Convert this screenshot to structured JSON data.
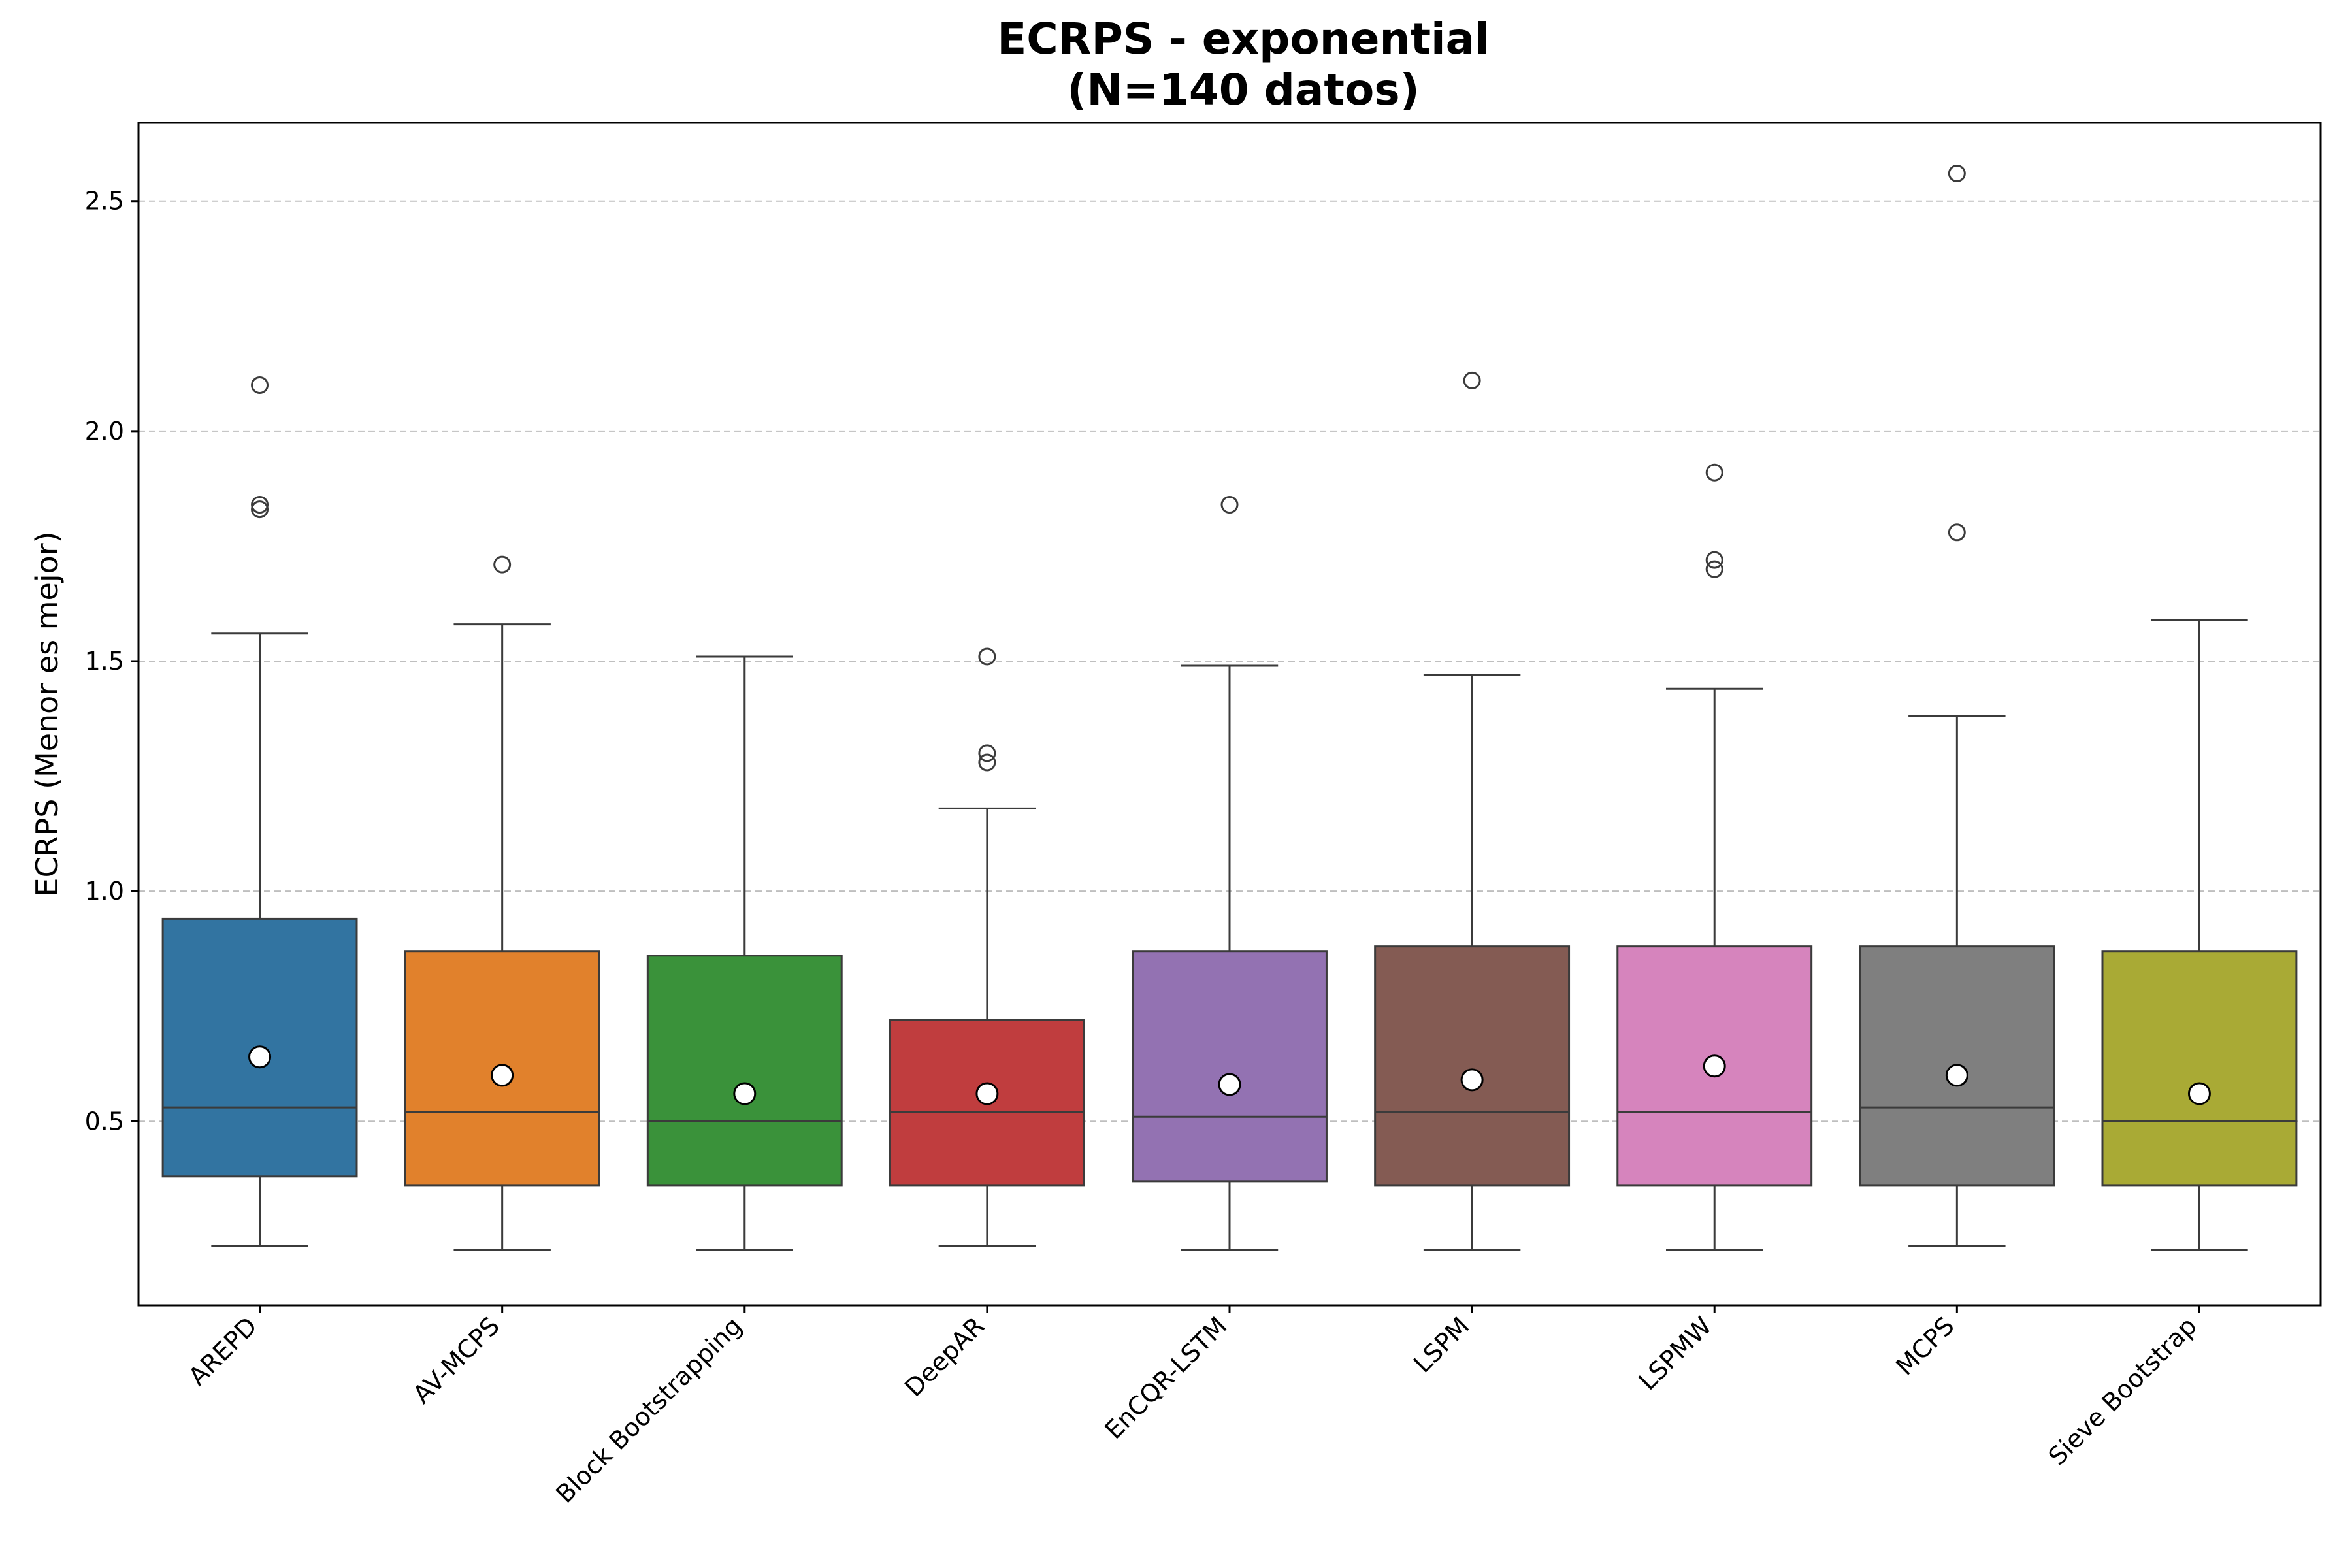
{
  "chart_data": {
    "type": "boxplot",
    "title": [
      "ECRPS - exponential",
      "(N=140 datos)"
    ],
    "xlabel": "",
    "ylabel": "ECRPS (Menor es mejor)",
    "ylim": [
      0.1,
      2.67
    ],
    "yticks": [
      0.5,
      1.0,
      1.5,
      2.0,
      2.5
    ],
    "ytick_labels": [
      "0.5",
      "1.0",
      "1.5",
      "2.0",
      "2.5"
    ],
    "grid": "horizontal dashed",
    "categories": [
      "AREPD",
      "AV-MCPS",
      "Block Bootstrapping",
      "DeepAR",
      "EnCQR-LSTM",
      "LSPM",
      "LSPMW",
      "MCPS",
      "Sieve Bootstrap"
    ],
    "colors": [
      "#3274a1",
      "#e1812c",
      "#3a923a",
      "#c03d3e",
      "#9372b2",
      "#845b53",
      "#d684bd",
      "#7f7f7f",
      "#a9aa35"
    ],
    "boxes": [
      {
        "whisker_low": 0.23,
        "q1": 0.38,
        "median": 0.53,
        "q3": 0.94,
        "whisker_high": 1.56,
        "mean": 0.64,
        "outliers": [
          1.83,
          1.84,
          2.1
        ]
      },
      {
        "whisker_low": 0.22,
        "q1": 0.36,
        "median": 0.52,
        "q3": 0.87,
        "whisker_high": 1.58,
        "mean": 0.6,
        "outliers": [
          1.71
        ]
      },
      {
        "whisker_low": 0.22,
        "q1": 0.36,
        "median": 0.5,
        "q3": 0.86,
        "whisker_high": 1.51,
        "mean": 0.56,
        "outliers": []
      },
      {
        "whisker_low": 0.23,
        "q1": 0.36,
        "median": 0.52,
        "q3": 0.72,
        "whisker_high": 1.18,
        "mean": 0.56,
        "outliers": [
          1.28,
          1.3,
          1.51
        ]
      },
      {
        "whisker_low": 0.22,
        "q1": 0.37,
        "median": 0.51,
        "q3": 0.87,
        "whisker_high": 1.49,
        "mean": 0.58,
        "outliers": [
          1.84
        ]
      },
      {
        "whisker_low": 0.22,
        "q1": 0.36,
        "median": 0.52,
        "q3": 0.88,
        "whisker_high": 1.47,
        "mean": 0.59,
        "outliers": [
          2.11
        ]
      },
      {
        "whisker_low": 0.22,
        "q1": 0.36,
        "median": 0.52,
        "q3": 0.88,
        "whisker_high": 1.44,
        "mean": 0.62,
        "outliers": [
          1.7,
          1.72,
          1.91
        ]
      },
      {
        "whisker_low": 0.23,
        "q1": 0.36,
        "median": 0.53,
        "q3": 0.88,
        "whisker_high": 1.38,
        "mean": 0.6,
        "outliers": [
          1.78,
          2.56
        ]
      },
      {
        "whisker_low": 0.22,
        "q1": 0.36,
        "median": 0.5,
        "q3": 0.87,
        "whisker_high": 1.59,
        "mean": 0.56,
        "outliers": []
      }
    ]
  }
}
